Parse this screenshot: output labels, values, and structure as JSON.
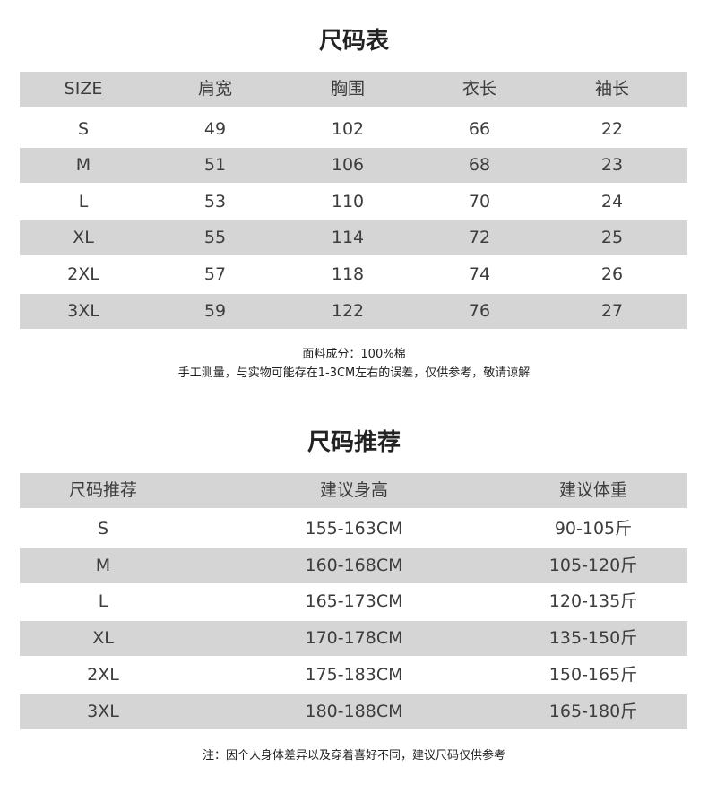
{
  "size_chart": {
    "title": "尺码表",
    "headers": [
      "SIZE",
      "肩宽",
      "胸围",
      "衣长",
      "袖长"
    ],
    "rows": [
      [
        "S",
        "49",
        "102",
        "66",
        "22"
      ],
      [
        "M",
        "51",
        "106",
        "68",
        "23"
      ],
      [
        "L",
        "53",
        "110",
        "70",
        "24"
      ],
      [
        "XL",
        "55",
        "114",
        "72",
        "25"
      ],
      [
        "2XL",
        "57",
        "118",
        "74",
        "26"
      ],
      [
        "3XL",
        "59",
        "122",
        "76",
        "27"
      ]
    ],
    "notes": [
      "面料成分：100%棉",
      "手工测量，与实物可能存在1-3CM左右的误差，仅供参考，敬请谅解"
    ]
  },
  "recommendation": {
    "title": "尺码推荐",
    "headers": [
      "尺码推荐",
      "建议身高",
      "建议体重"
    ],
    "rows": [
      [
        "S",
        "155-163CM",
        "90-105斤"
      ],
      [
        "M",
        "160-168CM",
        "105-120斤"
      ],
      [
        "L",
        "165-173CM",
        "120-135斤"
      ],
      [
        "XL",
        "170-178CM",
        "135-150斤"
      ],
      [
        "2XL",
        "175-183CM",
        "150-165斤"
      ],
      [
        "3XL",
        "180-188CM",
        "165-180斤"
      ]
    ],
    "note": "注：因个人身体差异以及穿着喜好不同，建议尺码仅供参考"
  },
  "colors": {
    "stripe": "#d5d5d5",
    "text": "#3d3d3d"
  }
}
